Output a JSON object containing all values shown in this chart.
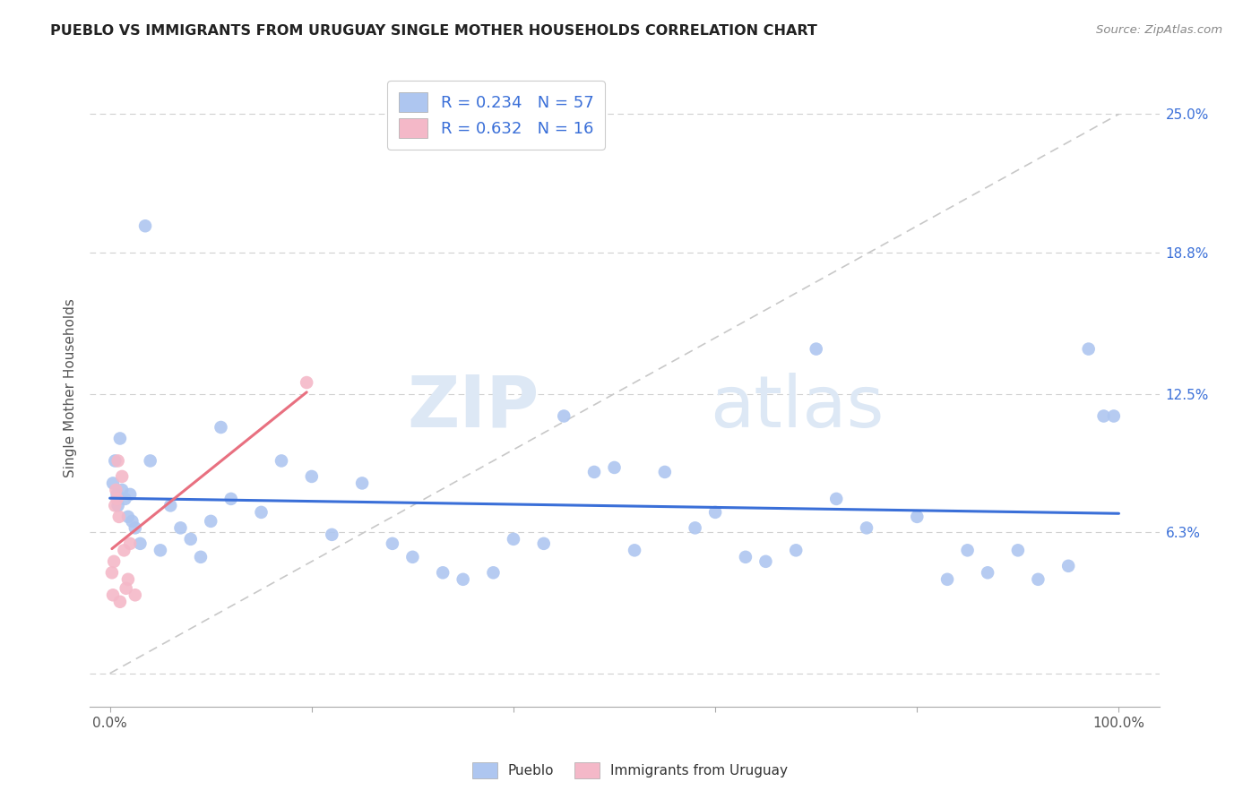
{
  "title": "PUEBLO VS IMMIGRANTS FROM URUGUAY SINGLE MOTHER HOUSEHOLDS CORRELATION CHART",
  "source": "Source: ZipAtlas.com",
  "ylabel": "Single Mother Households",
  "pueblo_color": "#aec6f0",
  "uruguay_color": "#f4b8c8",
  "trendline_blue": "#3a6fd8",
  "trendline_pink": "#e87080",
  "trendline_dashed": "#c8c8c8",
  "R_pueblo": 0.234,
  "N_pueblo": 57,
  "R_uruguay": 0.632,
  "N_uruguay": 16,
  "pueblo_x": [
    0.3,
    0.5,
    0.7,
    0.8,
    1.0,
    1.2,
    1.5,
    1.8,
    2.0,
    2.2,
    2.5,
    3.0,
    3.5,
    4.0,
    5.0,
    6.0,
    7.0,
    8.0,
    9.0,
    10.0,
    11.0,
    12.0,
    15.0,
    17.0,
    20.0,
    22.0,
    25.0,
    28.0,
    30.0,
    33.0,
    35.0,
    38.0,
    40.0,
    43.0,
    45.0,
    48.0,
    50.0,
    52.0,
    55.0,
    58.0,
    60.0,
    63.0,
    65.0,
    68.0,
    70.0,
    72.0,
    75.0,
    80.0,
    83.0,
    85.0,
    87.0,
    90.0,
    92.0,
    95.0,
    97.0,
    98.5,
    99.5
  ],
  "pueblo_y": [
    8.5,
    9.5,
    8.0,
    7.5,
    10.5,
    8.2,
    7.8,
    7.0,
    8.0,
    6.8,
    6.5,
    5.8,
    20.0,
    9.5,
    5.5,
    7.5,
    6.5,
    6.0,
    5.2,
    6.8,
    11.0,
    7.8,
    7.2,
    9.5,
    8.8,
    6.2,
    8.5,
    5.8,
    5.2,
    4.5,
    4.2,
    4.5,
    6.0,
    5.8,
    11.5,
    9.0,
    9.2,
    5.5,
    9.0,
    6.5,
    7.2,
    5.2,
    5.0,
    5.5,
    14.5,
    7.8,
    6.5,
    7.0,
    4.2,
    5.5,
    4.5,
    5.5,
    4.2,
    4.8,
    14.5,
    11.5,
    11.5
  ],
  "uruguay_x": [
    0.2,
    0.3,
    0.4,
    0.5,
    0.6,
    0.7,
    0.8,
    0.9,
    1.0,
    1.2,
    1.4,
    1.6,
    1.8,
    2.0,
    2.5,
    19.5
  ],
  "uruguay_y": [
    4.5,
    3.5,
    5.0,
    7.5,
    8.2,
    7.8,
    9.5,
    7.0,
    3.2,
    8.8,
    5.5,
    3.8,
    4.2,
    5.8,
    3.5,
    13.0
  ],
  "watermark_zip": "ZIP",
  "watermark_atlas": "atlas",
  "legend_label_blue": "R = 0.234   N = 57",
  "legend_label_pink": "R = 0.632   N = 16",
  "ytick_vals": [
    0,
    6.3,
    12.5,
    18.8,
    25.0
  ],
  "ytick_labels": [
    "",
    "6.3%",
    "12.5%",
    "18.8%",
    "25.0%"
  ],
  "xlim": [
    -2,
    104
  ],
  "ylim": [
    -1.5,
    27
  ]
}
